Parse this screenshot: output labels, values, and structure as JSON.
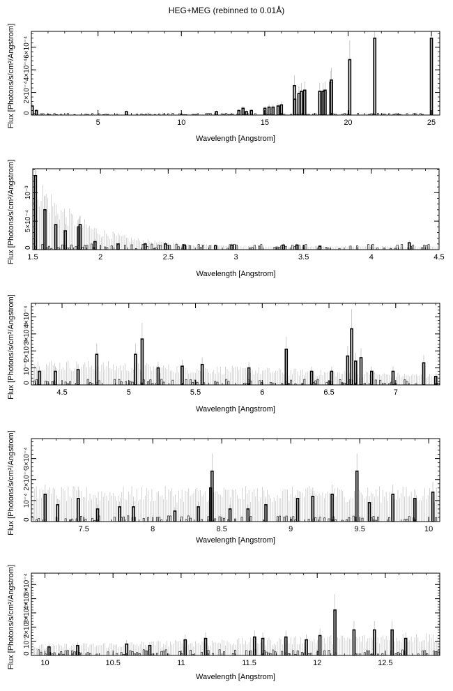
{
  "title": "HEG+MEG (rebinned to 0.01Å)",
  "chart_data": [
    {
      "type": "bar",
      "xlabel": "Wavelength [Angstrom]",
      "ylabel": "Flux [Photons/s/cm²/Angstrom]",
      "xlim": [
        1.0,
        25.5
      ],
      "ylim": [
        0,
        0.00074
      ],
      "xticks": [
        5,
        10,
        15,
        20,
        25
      ],
      "xtick_labels": [
        "5",
        "10",
        "15",
        "20",
        "25"
      ],
      "yticks": [
        0.0002,
        0.0004,
        0.0006
      ],
      "ytick_labels": [
        "2×10⁻⁴",
        "4×10⁻⁴",
        "6×10⁻⁴"
      ],
      "baseline_level": 8e-06,
      "lines": [
        {
          "x": 1.05,
          "y": 8e-05
        },
        {
          "x": 1.3,
          "y": 4e-05
        },
        {
          "x": 6.7,
          "y": 3e-05
        },
        {
          "x": 12.1,
          "y": 3e-05
        },
        {
          "x": 13.45,
          "y": 4e-05
        },
        {
          "x": 13.7,
          "y": 6e-05
        },
        {
          "x": 13.9,
          "y": 3e-05
        },
        {
          "x": 14.2,
          "y": 4e-05
        },
        {
          "x": 15.01,
          "y": 6e-05
        },
        {
          "x": 15.26,
          "y": 7e-05
        },
        {
          "x": 15.5,
          "y": 7e-05
        },
        {
          "x": 15.8,
          "y": 8e-05
        },
        {
          "x": 16.0,
          "y": 9e-05
        },
        {
          "x": 16.78,
          "y": 0.00026
        },
        {
          "x": 16.8,
          "y": 0.00014
        },
        {
          "x": 17.05,
          "y": 0.00019
        },
        {
          "x": 17.2,
          "y": 0.00021
        },
        {
          "x": 17.4,
          "y": 0.00022
        },
        {
          "x": 18.3,
          "y": 0.00021
        },
        {
          "x": 18.5,
          "y": 0.00021
        },
        {
          "x": 18.62,
          "y": 0.00022
        },
        {
          "x": 18.97,
          "y": 0.00029
        },
        {
          "x": 19.0,
          "y": 0.00031
        },
        {
          "x": 20.1,
          "y": 0.00049
        },
        {
          "x": 21.6,
          "y": 0.00068
        },
        {
          "x": 25.0,
          "y": 0.00068
        }
      ]
    },
    {
      "type": "bar",
      "xlabel": "Wavelength [Angstrom]",
      "ylabel": "Flux [Photons/s/cm²/Angstrom]",
      "xlim": [
        1.5,
        4.5
      ],
      "ylim": [
        0,
        0.00142
      ],
      "xticks": [
        1.5,
        2,
        2.5,
        3,
        3.5,
        4,
        4.5
      ],
      "xtick_labels": [
        "1.5",
        "2",
        "2.5",
        "3",
        "3.5",
        "4",
        "4.5"
      ],
      "yticks": [
        0.0005,
        0.001
      ],
      "ytick_labels": [
        "5×10⁻⁴",
        "10⁻³"
      ],
      "error_start": 0.0012,
      "error_end": 5e-05,
      "lines": [
        {
          "x": 1.52,
          "y": 0.0013
        },
        {
          "x": 1.59,
          "y": 0.0007
        },
        {
          "x": 1.67,
          "y": 0.00044
        },
        {
          "x": 1.74,
          "y": 0.00033
        },
        {
          "x": 1.84,
          "y": 0.0004
        },
        {
          "x": 1.85,
          "y": 0.00044
        },
        {
          "x": 1.96,
          "y": 0.00014
        },
        {
          "x": 2.13,
          "y": 0.0001
        },
        {
          "x": 2.33,
          "y": 0.0001
        },
        {
          "x": 2.48,
          "y": 0.0001
        },
        {
          "x": 2.62,
          "y": 8e-05
        },
        {
          "x": 2.85,
          "y": 7e-05
        },
        {
          "x": 2.97,
          "y": 8e-05
        },
        {
          "x": 3.35,
          "y": 8e-05
        },
        {
          "x": 3.45,
          "y": 8e-05
        },
        {
          "x": 3.62,
          "y": 6e-05
        },
        {
          "x": 4.28,
          "y": 0.00012
        }
      ]
    },
    {
      "type": "bar",
      "xlabel": "Wavelength [Angstrom]",
      "ylabel": "Flux [Photons/s/cm²/Angstrom]",
      "xlim": [
        4.27,
        7.33
      ],
      "ylim": [
        0,
        0.00048
      ],
      "xticks": [
        4.5,
        5,
        5.5,
        6,
        6.5,
        7
      ],
      "xtick_labels": [
        "4.5",
        "5",
        "5.5",
        "6",
        "6.5",
        "7"
      ],
      "yticks": [
        0.0001,
        0.0002,
        0.0003,
        0.0004
      ],
      "ytick_labels": [
        "10⁻⁴",
        "2×10⁻⁴",
        "3×10⁻⁴",
        "4×10⁻⁴"
      ],
      "error_start": 0.00012,
      "error_end": 5e-05,
      "lines": [
        {
          "x": 4.33,
          "y": 8e-05
        },
        {
          "x": 4.45,
          "y": 8e-05
        },
        {
          "x": 4.62,
          "y": 9e-05
        },
        {
          "x": 4.76,
          "y": 0.00018
        },
        {
          "x": 5.05,
          "y": 0.00018
        },
        {
          "x": 5.1,
          "y": 0.00027
        },
        {
          "x": 5.22,
          "y": 0.0001
        },
        {
          "x": 5.4,
          "y": 0.00011
        },
        {
          "x": 5.55,
          "y": 0.00012
        },
        {
          "x": 5.9,
          "y": 0.0001
        },
        {
          "x": 6.18,
          "y": 0.00021
        },
        {
          "x": 6.37,
          "y": 8e-05
        },
        {
          "x": 6.52,
          "y": 8e-05
        },
        {
          "x": 6.64,
          "y": 0.00017
        },
        {
          "x": 6.67,
          "y": 0.00033
        },
        {
          "x": 6.7,
          "y": 0.00014
        },
        {
          "x": 6.74,
          "y": 0.00016
        },
        {
          "x": 6.82,
          "y": 8e-05
        },
        {
          "x": 6.98,
          "y": 8e-05
        },
        {
          "x": 7.21,
          "y": 0.00013
        },
        {
          "x": 7.3,
          "y": 5e-05
        }
      ]
    },
    {
      "type": "bar",
      "xlabel": "Wavelength [Angstrom]",
      "ylabel": "Flux [Photons/s/cm²/Angstrom]",
      "xlim": [
        7.12,
        10.08
      ],
      "ylim": [
        0,
        0.000395
      ],
      "xticks": [
        7.5,
        8,
        8.5,
        9,
        9.5,
        10
      ],
      "xtick_labels": [
        "7.5",
        "8",
        "8.5",
        "9",
        "9.5",
        "10"
      ],
      "yticks": [
        0.0001,
        0.0002,
        0.0003
      ],
      "ytick_labels": [
        "10⁻⁴",
        "2×10⁻⁴",
        "3×10⁻⁴"
      ],
      "error_start": 0.00013,
      "error_end": 0.00013,
      "lines": [
        {
          "x": 7.22,
          "y": 0.00013
        },
        {
          "x": 7.31,
          "y": 8e-05
        },
        {
          "x": 7.46,
          "y": 0.00011
        },
        {
          "x": 7.6,
          "y": 6e-05
        },
        {
          "x": 7.76,
          "y": 7e-05
        },
        {
          "x": 7.86,
          "y": 7e-05
        },
        {
          "x": 8.16,
          "y": 5e-05
        },
        {
          "x": 8.33,
          "y": 7e-05
        },
        {
          "x": 8.42,
          "y": 0.00016
        },
        {
          "x": 8.43,
          "y": 0.00024
        },
        {
          "x": 8.56,
          "y": 6e-05
        },
        {
          "x": 8.69,
          "y": 6e-05
        },
        {
          "x": 8.82,
          "y": 8e-05
        },
        {
          "x": 9.05,
          "y": 0.00011
        },
        {
          "x": 9.16,
          "y": 0.00012
        },
        {
          "x": 9.3,
          "y": 0.00013
        },
        {
          "x": 9.48,
          "y": 0.00024
        },
        {
          "x": 9.57,
          "y": 9e-05
        },
        {
          "x": 9.74,
          "y": 0.00013
        },
        {
          "x": 9.9,
          "y": 0.00011
        },
        {
          "x": 10.03,
          "y": 0.00014
        }
      ]
    },
    {
      "type": "bar",
      "xlabel": "Wavelength [Angstrom]",
      "ylabel": "Flux [Photons/s/cm²/Angstrom]",
      "xlim": [
        9.9,
        12.9
      ],
      "ylim": [
        0,
        0.00058
      ],
      "xticks": [
        10,
        10.5,
        11,
        11.5,
        12,
        12.5
      ],
      "xtick_labels": [
        "10",
        "10.5",
        "11",
        "11.5",
        "12",
        "12.5"
      ],
      "yticks": [
        0.0001,
        0.0002,
        0.0003,
        0.0004,
        0.0005
      ],
      "ytick_labels": [
        "10⁻⁴",
        "2×10⁻⁴",
        "3×10⁻⁴",
        "4×10⁻⁴",
        "5×10⁻⁴"
      ],
      "error_start": 6e-05,
      "error_end": 0.00013,
      "lines": [
        {
          "x": 10.03,
          "y": 6e-05
        },
        {
          "x": 10.24,
          "y": 7e-05
        },
        {
          "x": 10.6,
          "y": 8e-05
        },
        {
          "x": 10.77,
          "y": 7e-05
        },
        {
          "x": 11.03,
          "y": 0.00011
        },
        {
          "x": 11.18,
          "y": 0.00012
        },
        {
          "x": 11.54,
          "y": 0.00013
        },
        {
          "x": 11.6,
          "y": 0.00012
        },
        {
          "x": 11.77,
          "y": 0.00013
        },
        {
          "x": 11.92,
          "y": 0.00011
        },
        {
          "x": 12.02,
          "y": 0.00014
        },
        {
          "x": 12.13,
          "y": 0.00032
        },
        {
          "x": 12.27,
          "y": 0.00018
        },
        {
          "x": 12.42,
          "y": 0.00018
        },
        {
          "x": 12.55,
          "y": 0.00018
        },
        {
          "x": 12.65,
          "y": 0.00012
        }
      ]
    }
  ]
}
